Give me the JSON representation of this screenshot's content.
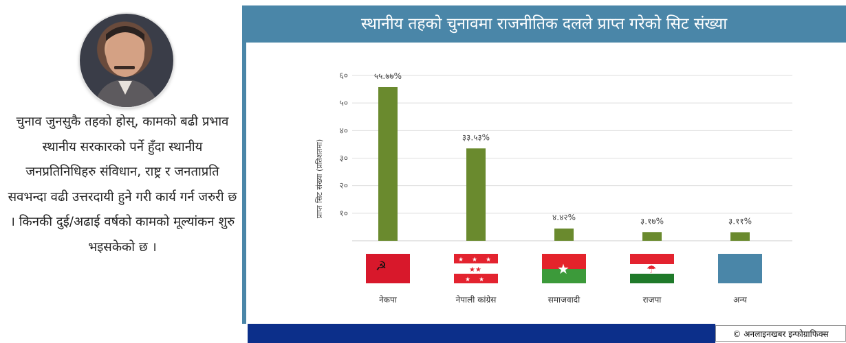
{
  "title": "स्थानीय तहको चुनावमा राजनीतिक दलले प्राप्त गरेको सिट संख्या",
  "quote": "चुनाव जुनसुकै तहको होस्, कामको बढी प्रभाव स्थानीय सरकारको पर्ने हुँदा स्थानीय जनप्रतिनिधिहरु संविधान, राष्ट्र र जनताप्रति सवभन्दा वढी उत्तरदायी हुने गरी कार्य गर्न जरुरी छ । किनकी दुई/अढाई वर्षको कामको मूल्यांकन शुरु भइसकेको छ ।",
  "credit": "© अनलाइनखबर इन्फोग्राफिक्स",
  "colors": {
    "bar": "#6a8a2e",
    "accent": "#4a86a8",
    "footer": "#0c2f8a"
  },
  "chart_data": {
    "type": "bar",
    "categories": [
      "नेकपा",
      "नेपाली कांग्रेस",
      "समाजवादी",
      "राजपा",
      "अन्य"
    ],
    "values": [
      55.77,
      33.53,
      4.42,
      3.17,
      3.11
    ],
    "data_labels": [
      "५५.७७%",
      "३३.५३%",
      "४.४२%",
      "३.१७%",
      "३.११%"
    ],
    "ylabel": "प्राप्त सिट संख्या (प्रतिशतमा)",
    "yticks": [
      10,
      20,
      30,
      40,
      50,
      60
    ],
    "ytick_labels": [
      "१०",
      "२०",
      "३०",
      "४०",
      "५०",
      "६०"
    ],
    "ylim": [
      0,
      60
    ],
    "grid": true
  },
  "flag_icons": [
    "ncp-flag-icon",
    "nepali-congress-flag-icon",
    "samajwadi-flag-icon",
    "rajpa-flag-icon",
    "others-flag-icon"
  ]
}
